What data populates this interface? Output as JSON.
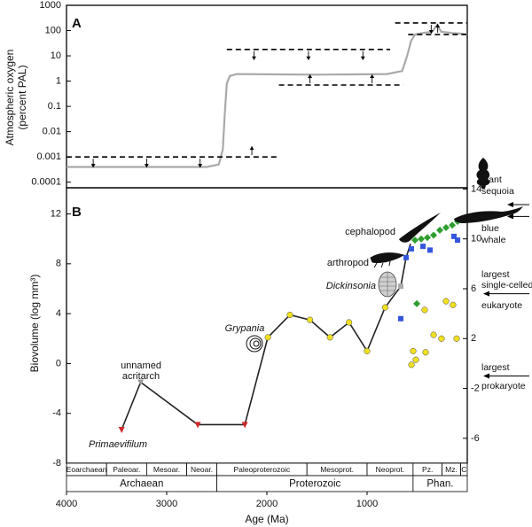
{
  "chart_data": [
    {
      "type": "line",
      "panel": "A",
      "ylabel": [
        "Atmospheric oxygen",
        "(percent PAL)"
      ],
      "log_y": true,
      "xlim": [
        4000,
        0
      ],
      "ylim": [
        6e-05,
        1000
      ],
      "yticks": [
        0.0001,
        0.001,
        0.01,
        0.1,
        1,
        10,
        100,
        1000
      ],
      "series": [
        {
          "color": "#a8aaa9",
          "x": [
            4000,
            2600,
            2480,
            2440,
            2420,
            2400,
            2370,
            2300,
            1500,
            800,
            650,
            600,
            560,
            520,
            450,
            350,
            300,
            260,
            150,
            40,
            0
          ],
          "values": [
            0.0004,
            0.0004,
            0.0005,
            0.002,
            0.05,
            0.8,
            1.6,
            1.9,
            1.8,
            1.9,
            2.5,
            10,
            40,
            70,
            80,
            90,
            170,
            90,
            80,
            75,
            70
          ]
        }
      ],
      "bounds": [
        {
          "kind": "upper",
          "x": [
            4000,
            2400
          ],
          "value": 0.001
        },
        {
          "kind": "lower",
          "x": [
            2400,
            1900
          ],
          "value": 0.001
        },
        {
          "kind": "upper",
          "x": [
            2400,
            770
          ],
          "value": 18
        },
        {
          "kind": "lower",
          "x": [
            1880,
            640
          ],
          "value": 0.7
        },
        {
          "kind": "upper",
          "x": [
            720,
            0
          ],
          "value": 200
        },
        {
          "kind": "lower",
          "x": [
            590,
            0
          ],
          "value": 70
        }
      ]
    },
    {
      "type": "scatter",
      "panel": "B",
      "ylabel": "Biovolume (log mm³)",
      "xlabel": "Age (Ma)",
      "xlim": [
        4000,
        0
      ],
      "xticks": [
        4000,
        3000,
        2000,
        1000
      ],
      "ylim": [
        -8,
        14.1
      ],
      "yticks": [
        -8,
        -4,
        0,
        4,
        8,
        12
      ],
      "y2lim": [
        -8,
        14.1
      ],
      "y2ticks": [
        -6,
        -2,
        2,
        6,
        10,
        14
      ],
      "trend": {
        "color": "#222222",
        "x": [
          3450,
          3260,
          2690,
          2220,
          1990,
          1770,
          1570,
          1370,
          1180,
          1000,
          820,
          664,
          611,
          566
        ],
        "values": [
          -5.3,
          -1.5,
          -4.9,
          -4.9,
          2.1,
          3.9,
          3.5,
          2.1,
          3.3,
          1.0,
          4.5,
          6.2,
          8.5,
          9.6
        ]
      },
      "series": [
        {
          "marker": "triangle-down",
          "color": "#d0282a",
          "x": [
            3450,
            2690,
            2220
          ],
          "values": [
            -5.3,
            -4.9,
            -4.9
          ]
        },
        {
          "marker": "triangle-down",
          "color": "#9a9a9a",
          "x": [
            3260
          ],
          "values": [
            -1.5
          ]
        },
        {
          "marker": "circle",
          "color": "#f0e020",
          "x": [
            1990,
            1770,
            1570,
            1370,
            1180,
            1000,
            820,
            557,
            513,
            540,
            416,
            425,
            336,
            257,
            212,
            142,
            106
          ],
          "values": [
            2.1,
            3.9,
            3.5,
            2.1,
            3.3,
            1.0,
            4.5,
            -0.1,
            0.3,
            1.0,
            0.9,
            4.3,
            2.3,
            2.0,
            5.0,
            4.7,
            2.0
          ]
        },
        {
          "marker": "square",
          "color": "#3355dd",
          "x": [
            664,
            611,
            558,
            442,
            372,
            133,
            97
          ],
          "values": [
            3.6,
            8.5,
            9.2,
            9.4,
            9.1,
            10.2,
            9.9
          ]
        },
        {
          "marker": "diamond",
          "color": "#2e9e2e",
          "x": [
            504,
            522,
            460,
            398,
            336,
            274,
            212,
            150,
            97
          ],
          "values": [
            4.8,
            9.9,
            10.0,
            10.1,
            10.3,
            10.7,
            10.9,
            11.1,
            11.4
          ]
        },
        {
          "marker": "square",
          "color": "#aaaaaa",
          "x": [
            664
          ],
          "values": [
            6.2
          ]
        }
      ],
      "annotations": [
        {
          "text": [
            "unnamed",
            "acritarch"
          ]
        },
        {
          "text": [
            "Primaevifilum"
          ],
          "italic": true
        },
        {
          "text": [
            "Grypania"
          ],
          "italic": true
        },
        {
          "text": [
            "Dickinsonia"
          ],
          "italic": true
        },
        {
          "text": [
            "arthropod"
          ]
        },
        {
          "text": [
            "cephalopod"
          ]
        }
      ],
      "references": [
        {
          "text": [
            "giant",
            "sequoia"
          ],
          "value": 12.75,
          "axis": "y2"
        },
        {
          "text": [
            "blue",
            "whale"
          ],
          "value": 11.8,
          "axis": "y2"
        },
        {
          "text": [
            "largest",
            "single-celled",
            "eukaryote"
          ],
          "value": 5.6,
          "axis": "y2"
        },
        {
          "text": [
            "largest",
            "prokaryote"
          ],
          "value": -1.0,
          "axis": "y2"
        }
      ],
      "timescale": {
        "eras": [
          {
            "name": "Eoarchaean",
            "start": 4000,
            "end": 3600
          },
          {
            "name": "Paleoar.",
            "start": 3600,
            "end": 3200
          },
          {
            "name": "Mesoar.",
            "start": 3200,
            "end": 2800
          },
          {
            "name": "Neoar.",
            "start": 2800,
            "end": 2500
          },
          {
            "name": "Paleoproterozoic",
            "start": 2500,
            "end": 1600
          },
          {
            "name": "Mesoprot.",
            "start": 1600,
            "end": 1000
          },
          {
            "name": "Neoprot.",
            "start": 1000,
            "end": 541
          },
          {
            "name": "Pz.",
            "start": 541,
            "end": 252
          },
          {
            "name": "Mz.",
            "start": 252,
            "end": 66
          },
          {
            "name": "C",
            "start": 66,
            "end": 0
          }
        ],
        "eons": [
          {
            "name": "Archaean",
            "start": 4000,
            "end": 2500
          },
          {
            "name": "Proterozoic",
            "start": 2500,
            "end": 541
          },
          {
            "name": "Phan.",
            "start": 541,
            "end": 0
          }
        ]
      }
    }
  ]
}
